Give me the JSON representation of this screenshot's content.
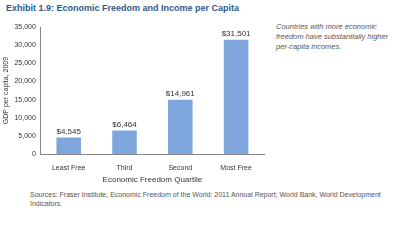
{
  "chart_data": {
    "type": "bar",
    "title": "Exhibit 1.9: Economic Freedom and Income per Capita",
    "x_label": "Economic Freedom Quartile",
    "y_label": "GDP per capita, 2009",
    "annotation": "Countries with more economic freedom have substantially higher per-capita incomes.",
    "source": "Sources: Fraser Institute, Economic Freedom of the World: 2011 Annual Report; World Bank, World Development Indicators.",
    "categories": [
      "Least Free",
      "Third",
      "Second",
      "Most Free"
    ],
    "values": [
      4545,
      6464,
      14961,
      31501
    ],
    "value_labels": [
      "$4,545",
      "$6,464",
      "$14,961",
      "$31,501"
    ],
    "data_labels": true,
    "color": "#7ea6dc",
    "ylim": [
      0,
      35000
    ],
    "yticks": [
      0,
      {
        "value": 5000,
        "label": "5,000"
      },
      {
        "value": 10000,
        "label": "10,000"
      },
      {
        "value": 15000,
        "label": "15,000"
      },
      {
        "value": 20000,
        "label": "20,000"
      },
      {
        "value": 25000,
        "label": "25,000"
      },
      {
        "value": 30000,
        "label": "30,000"
      },
      {
        "value": 35000,
        "label": "35,000"
      }
    ],
    "grid": false
  }
}
